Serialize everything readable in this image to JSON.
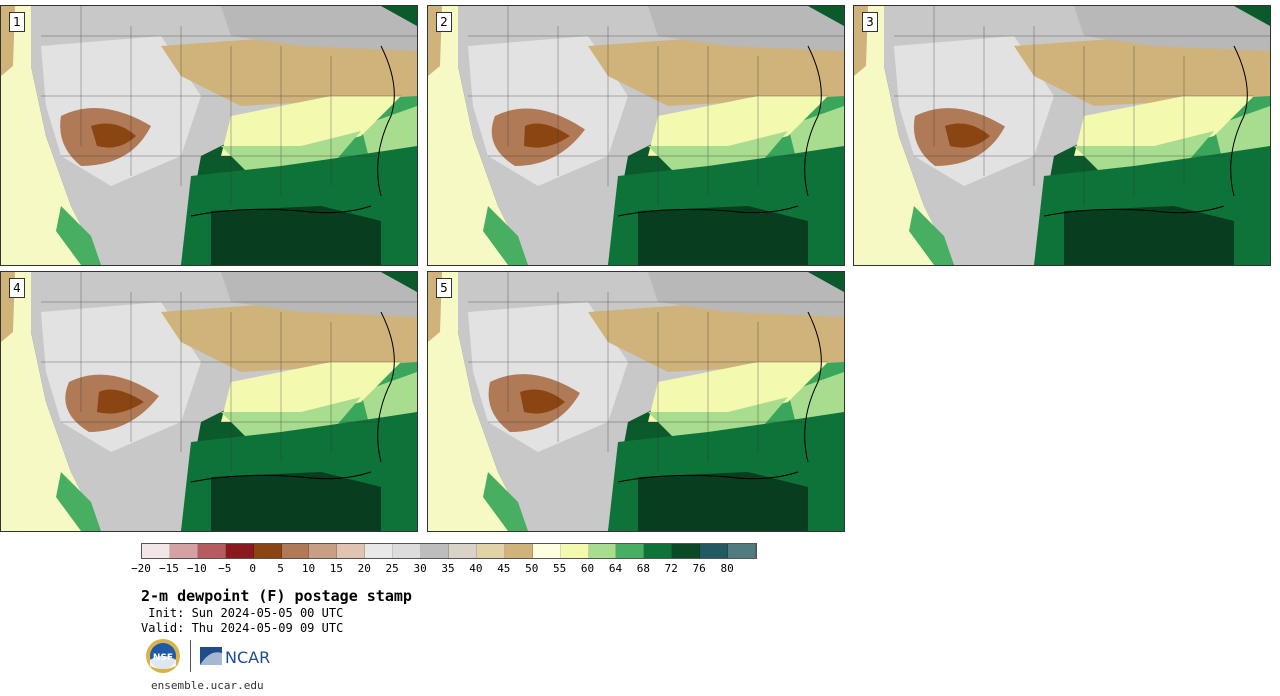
{
  "panels": [
    {
      "label": "1"
    },
    {
      "label": "2"
    },
    {
      "label": "3"
    },
    {
      "label": "4"
    },
    {
      "label": "5"
    }
  ],
  "colorbar": {
    "colors": [
      "#f3e6e6",
      "#d5a1a3",
      "#b45c60",
      "#8b1a1e",
      "#8b4513",
      "#b07a57",
      "#c89f85",
      "#e0c4b2",
      "#e8e8e8",
      "#dcdcdc",
      "#bdbdbd",
      "#d8d3c6",
      "#e2d2a8",
      "#cfb37a",
      "#ffffe0",
      "#f4f9b0",
      "#a8dc8e",
      "#48ae62",
      "#0e7338",
      "#0a4a24",
      "#235a62",
      "#527b80"
    ],
    "ticks": [
      "−20",
      "−15",
      "−10",
      "−5",
      "0",
      "5",
      "10",
      "15",
      "20",
      "25",
      "30",
      "35",
      "40",
      "45",
      "50",
      "55",
      "60",
      "64",
      "68",
      "72",
      "76",
      "80"
    ]
  },
  "title": "2-m dewpoint (F) postage stamp",
  "init": " Init: Sun 2024-05-05 00 UTC",
  "valid": "Valid: Thu 2024-05-09 09 UTC",
  "logos": {
    "nsf": "NSF",
    "ncar": "NCAR"
  },
  "url": "ensemble.ucar.edu"
}
